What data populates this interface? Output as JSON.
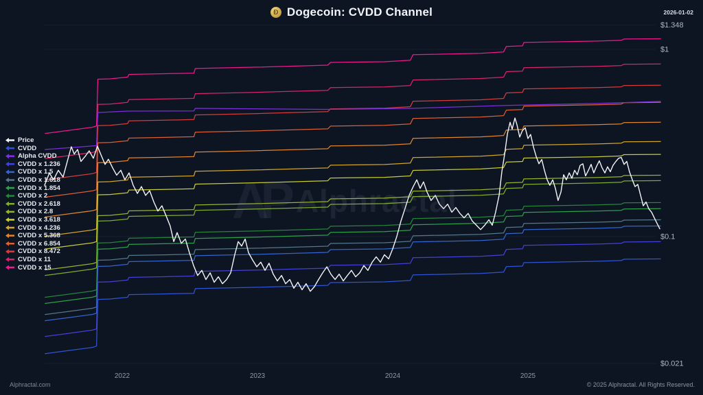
{
  "header": {
    "title": "Dogecoin: CVDD Channel",
    "date": "2026-01-02",
    "coin_symbol": "Ð"
  },
  "watermark": {
    "logo_text": "AP",
    "brand": "Alphractal"
  },
  "footer": {
    "site": "Alphractal.com",
    "copyright": "© 2025 Alphractal. All Rights Reserved."
  },
  "colors": {
    "background": "#0d1422",
    "title_text": "#f2f5f9",
    "axis_text": "#aeb6c2",
    "year_text": "#8e99a8",
    "grid": "rgba(160,175,200,0.07)"
  },
  "chart_data": {
    "type": "line",
    "title": "Dogecoin: CVDD Channel",
    "x_axis": {
      "labels": [
        "2022",
        "2023",
        "2024",
        "2025"
      ],
      "range": [
        2021.42,
        2026.02
      ]
    },
    "y_axis": {
      "scale": "log",
      "unit": "USD",
      "labels": [
        {
          "text": "$1.348",
          "value": 1.348
        },
        {
          "text": "$1",
          "value": 1
        },
        {
          "text": "$0.1",
          "value": 0.1
        },
        {
          "text": "$0.021",
          "value": 0.021
        }
      ]
    },
    "legend_position": "left",
    "series": [
      {
        "name": "Price",
        "color": "#f4f6fa",
        "points": [
          [
            2021.426,
            0.188
          ],
          [
            2021.462,
            0.219
          ],
          [
            2021.492,
            0.201
          ],
          [
            2021.528,
            0.226
          ],
          [
            2021.563,
            0.208
          ],
          [
            2021.594,
            0.252
          ],
          [
            2021.624,
            0.302
          ],
          [
            2021.645,
            0.276
          ],
          [
            2021.67,
            0.292
          ],
          [
            2021.695,
            0.252
          ],
          [
            2021.726,
            0.268
          ],
          [
            2021.756,
            0.287
          ],
          [
            2021.787,
            0.262
          ],
          [
            2021.817,
            0.304
          ],
          [
            2021.848,
            0.268
          ],
          [
            2021.873,
            0.243
          ],
          [
            2021.898,
            0.259
          ],
          [
            2021.929,
            0.233
          ],
          [
            2021.959,
            0.213
          ],
          [
            2021.99,
            0.226
          ],
          [
            2022.02,
            0.201
          ],
          [
            2022.051,
            0.219
          ],
          [
            2022.081,
            0.188
          ],
          [
            2022.112,
            0.17
          ],
          [
            2022.142,
            0.185
          ],
          [
            2022.173,
            0.166
          ],
          [
            2022.203,
            0.176
          ],
          [
            2022.234,
            0.153
          ],
          [
            2022.264,
            0.137
          ],
          [
            2022.294,
            0.146
          ],
          [
            2022.325,
            0.129
          ],
          [
            2022.355,
            0.114
          ],
          [
            2022.381,
            0.094
          ],
          [
            2022.406,
            0.105
          ],
          [
            2022.437,
            0.092
          ],
          [
            2022.467,
            0.097
          ],
          [
            2022.497,
            0.082
          ],
          [
            2022.528,
            0.07
          ],
          [
            2022.558,
            0.062
          ],
          [
            2022.589,
            0.066
          ],
          [
            2022.619,
            0.059
          ],
          [
            2022.65,
            0.064
          ],
          [
            2022.68,
            0.057
          ],
          [
            2022.711,
            0.061
          ],
          [
            2022.741,
            0.056
          ],
          [
            2022.772,
            0.059
          ],
          [
            2022.802,
            0.064
          ],
          [
            2022.832,
            0.08
          ],
          [
            2022.858,
            0.094
          ],
          [
            2022.883,
            0.089
          ],
          [
            2022.909,
            0.097
          ],
          [
            2022.934,
            0.082
          ],
          [
            2022.964,
            0.075
          ],
          [
            2022.995,
            0.069
          ],
          [
            2023.025,
            0.073
          ],
          [
            2023.056,
            0.066
          ],
          [
            2023.086,
            0.072
          ],
          [
            2023.117,
            0.063
          ],
          [
            2023.147,
            0.058
          ],
          [
            2023.178,
            0.062
          ],
          [
            2023.208,
            0.056
          ],
          [
            2023.239,
            0.059
          ],
          [
            2023.269,
            0.053
          ],
          [
            2023.299,
            0.057
          ],
          [
            2023.33,
            0.052
          ],
          [
            2023.36,
            0.056
          ],
          [
            2023.391,
            0.051
          ],
          [
            2023.421,
            0.054
          ],
          [
            2023.452,
            0.059
          ],
          [
            2023.482,
            0.064
          ],
          [
            2023.513,
            0.069
          ],
          [
            2023.543,
            0.063
          ],
          [
            2023.574,
            0.059
          ],
          [
            2023.604,
            0.063
          ],
          [
            2023.635,
            0.058
          ],
          [
            2023.665,
            0.062
          ],
          [
            2023.695,
            0.066
          ],
          [
            2023.726,
            0.061
          ],
          [
            2023.756,
            0.064
          ],
          [
            2023.787,
            0.07
          ],
          [
            2023.817,
            0.066
          ],
          [
            2023.848,
            0.073
          ],
          [
            2023.878,
            0.078
          ],
          [
            2023.909,
            0.073
          ],
          [
            2023.939,
            0.08
          ],
          [
            2023.97,
            0.076
          ],
          [
            2024.0,
            0.086
          ],
          [
            2024.03,
            0.1
          ],
          [
            2024.061,
            0.121
          ],
          [
            2024.091,
            0.141
          ],
          [
            2024.122,
            0.166
          ],
          [
            2024.152,
            0.185
          ],
          [
            2024.178,
            0.201
          ],
          [
            2024.203,
            0.181
          ],
          [
            2024.228,
            0.196
          ],
          [
            2024.254,
            0.173
          ],
          [
            2024.284,
            0.156
          ],
          [
            2024.315,
            0.166
          ],
          [
            2024.345,
            0.149
          ],
          [
            2024.376,
            0.141
          ],
          [
            2024.406,
            0.149
          ],
          [
            2024.437,
            0.135
          ],
          [
            2024.467,
            0.143
          ],
          [
            2024.497,
            0.133
          ],
          [
            2024.528,
            0.126
          ],
          [
            2024.558,
            0.133
          ],
          [
            2024.589,
            0.121
          ],
          [
            2024.619,
            0.115
          ],
          [
            2024.65,
            0.109
          ],
          [
            2024.68,
            0.115
          ],
          [
            2024.711,
            0.123
          ],
          [
            2024.736,
            0.115
          ],
          [
            2024.761,
            0.135
          ],
          [
            2024.787,
            0.166
          ],
          [
            2024.807,
            0.222
          ],
          [
            2024.828,
            0.276
          ],
          [
            2024.848,
            0.354
          ],
          [
            2024.868,
            0.408
          ],
          [
            2024.883,
            0.375
          ],
          [
            2024.904,
            0.43
          ],
          [
            2024.919,
            0.396
          ],
          [
            2024.939,
            0.34
          ],
          [
            2024.959,
            0.368
          ],
          [
            2024.98,
            0.381
          ],
          [
            2025.0,
            0.334
          ],
          [
            2025.02,
            0.351
          ],
          [
            2025.041,
            0.3
          ],
          [
            2025.061,
            0.268
          ],
          [
            2025.081,
            0.245
          ],
          [
            2025.102,
            0.258
          ],
          [
            2025.122,
            0.226
          ],
          [
            2025.142,
            0.201
          ],
          [
            2025.162,
            0.188
          ],
          [
            2025.183,
            0.201
          ],
          [
            2025.203,
            0.181
          ],
          [
            2025.223,
            0.156
          ],
          [
            2025.244,
            0.173
          ],
          [
            2025.264,
            0.214
          ],
          [
            2025.284,
            0.201
          ],
          [
            2025.305,
            0.219
          ],
          [
            2025.325,
            0.205
          ],
          [
            2025.345,
            0.226
          ],
          [
            2025.365,
            0.214
          ],
          [
            2025.386,
            0.24
          ],
          [
            2025.406,
            0.245
          ],
          [
            2025.426,
            0.211
          ],
          [
            2025.447,
            0.226
          ],
          [
            2025.467,
            0.243
          ],
          [
            2025.487,
            0.219
          ],
          [
            2025.508,
            0.238
          ],
          [
            2025.528,
            0.254
          ],
          [
            2025.548,
            0.233
          ],
          [
            2025.569,
            0.219
          ],
          [
            2025.589,
            0.236
          ],
          [
            2025.609,
            0.222
          ],
          [
            2025.629,
            0.24
          ],
          [
            2025.65,
            0.252
          ],
          [
            2025.67,
            0.262
          ],
          [
            2025.69,
            0.265
          ],
          [
            2025.711,
            0.243
          ],
          [
            2025.731,
            0.252
          ],
          [
            2025.751,
            0.222
          ],
          [
            2025.772,
            0.201
          ],
          [
            2025.792,
            0.185
          ],
          [
            2025.812,
            0.19
          ],
          [
            2025.833,
            0.166
          ],
          [
            2025.853,
            0.146
          ],
          [
            2025.873,
            0.153
          ],
          [
            2025.893,
            0.141
          ],
          [
            2025.914,
            0.135
          ],
          [
            2025.934,
            0.126
          ],
          [
            2025.954,
            0.118
          ],
          [
            2025.975,
            0.11
          ]
        ]
      },
      {
        "name": "CVDD",
        "color": "#2f55d6",
        "points": [
          [
            2021.43,
            0.0237
          ],
          [
            2021.6,
            0.0246
          ],
          [
            2021.78,
            0.0256
          ],
          [
            2021.81,
            0.026
          ],
          [
            2021.82,
            0.0462
          ],
          [
            2021.91,
            0.0464
          ],
          [
            2022.04,
            0.0474
          ],
          [
            2022.05,
            0.049
          ],
          [
            2022.31,
            0.0494
          ],
          [
            2022.53,
            0.0498
          ],
          [
            2022.54,
            0.0527
          ],
          [
            2023.0,
            0.0536
          ],
          [
            2023.52,
            0.0549
          ],
          [
            2023.54,
            0.0568
          ],
          [
            2023.94,
            0.0573
          ],
          [
            2024.13,
            0.0583
          ],
          [
            2024.15,
            0.0624
          ],
          [
            2024.65,
            0.0635
          ],
          [
            2024.82,
            0.0646
          ],
          [
            2024.84,
            0.0691
          ],
          [
            2024.96,
            0.0696
          ],
          [
            2024.97,
            0.0726
          ],
          [
            2025.51,
            0.0738
          ],
          [
            2025.69,
            0.0745
          ],
          [
            2025.71,
            0.0757
          ],
          [
            2025.98,
            0.076
          ]
        ]
      },
      {
        "name": "Alpha CVDD",
        "color": "#7c2fe0",
        "points": [
          [
            2021.43,
            0.292
          ],
          [
            2021.81,
            0.306
          ],
          [
            2021.82,
            0.46
          ],
          [
            2022.04,
            0.468
          ],
          [
            2022.53,
            0.469
          ],
          [
            2022.54,
            0.484
          ],
          [
            2023.5,
            0.478
          ],
          [
            2024.14,
            0.484
          ],
          [
            2024.84,
            0.502
          ],
          [
            2025.5,
            0.514
          ],
          [
            2025.98,
            0.527
          ]
        ]
      },
      {
        "name": "CVDD x 1.236",
        "color": "#4341d8",
        "base": "CVDD",
        "multiplier": 1.236
      },
      {
        "name": "CVDD x 1.5",
        "color": "#3566cf",
        "base": "CVDD",
        "multiplier": 1.5
      },
      {
        "name": "CVDD x 1.618",
        "color": "#56788a",
        "base": "CVDD",
        "multiplier": 1.618
      },
      {
        "name": "CVDD x 1.854",
        "color": "#2fa04a",
        "base": "CVDD",
        "multiplier": 1.854
      },
      {
        "name": "CVDD x 2",
        "color": "#27863c",
        "base": "CVDD",
        "multiplier": 2
      },
      {
        "name": "CVDD x 2.618",
        "color": "#7fae2e",
        "base": "CVDD",
        "multiplier": 2.618
      },
      {
        "name": "CVDD x 2.8",
        "color": "#97b52c",
        "base": "CVDD",
        "multiplier": 2.8
      },
      {
        "name": "CVDD x 3.618",
        "color": "#c9cc33",
        "base": "CVDD",
        "multiplier": 3.618
      },
      {
        "name": "CVDD x 4.236",
        "color": "#d2a62c",
        "base": "CVDD",
        "multiplier": 4.236
      },
      {
        "name": "CVDD x 5.368",
        "color": "#e2852c",
        "base": "CVDD",
        "multiplier": 5.368
      },
      {
        "name": "CVDD x 6.854",
        "color": "#de5f30",
        "base": "CVDD",
        "multiplier": 6.854
      },
      {
        "name": "CVDD x 8.472",
        "color": "#d63c3c",
        "base": "CVDD",
        "multiplier": 8.472
      },
      {
        "name": "CVDD x 11",
        "color": "#d9256b",
        "base": "CVDD",
        "multiplier": 11
      },
      {
        "name": "CVDD x 15",
        "color": "#ef1a8e",
        "base": "CVDD",
        "multiplier": 15
      }
    ]
  }
}
